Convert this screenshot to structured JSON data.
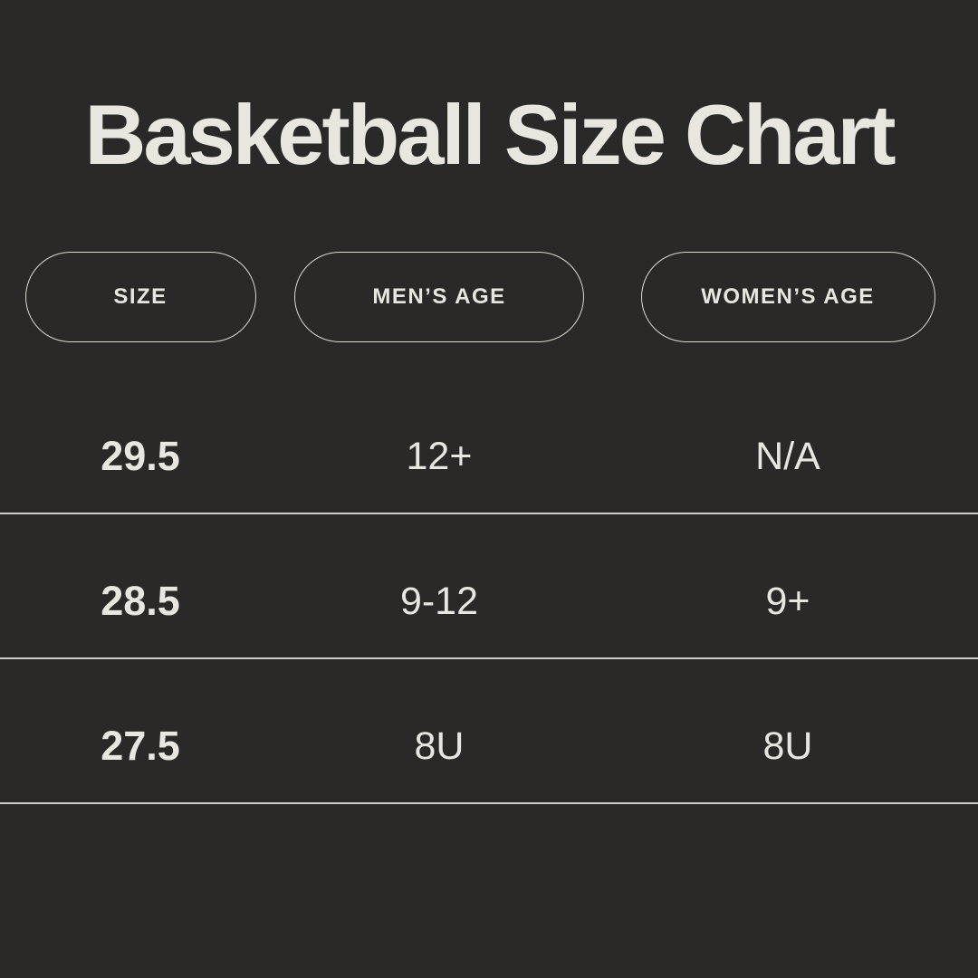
{
  "page": {
    "title": "Basketball Size Chart"
  },
  "colors": {
    "background": "#2a2928",
    "text": "#e9e6df",
    "pill_border": "#dcd9d1",
    "divider": "#e2dfd7"
  },
  "table": {
    "columns": [
      {
        "label": "SIZE"
      },
      {
        "label": "MEN’S AGE"
      },
      {
        "label": "WOMEN’S AGE"
      }
    ],
    "rows": [
      {
        "size": "29.5",
        "mens_age": "12+",
        "womens_age": "N/A"
      },
      {
        "size": "28.5",
        "mens_age": "9-12",
        "womens_age": "9+"
      },
      {
        "size": "27.5",
        "mens_age": "8U",
        "womens_age": "8U"
      }
    ]
  }
}
